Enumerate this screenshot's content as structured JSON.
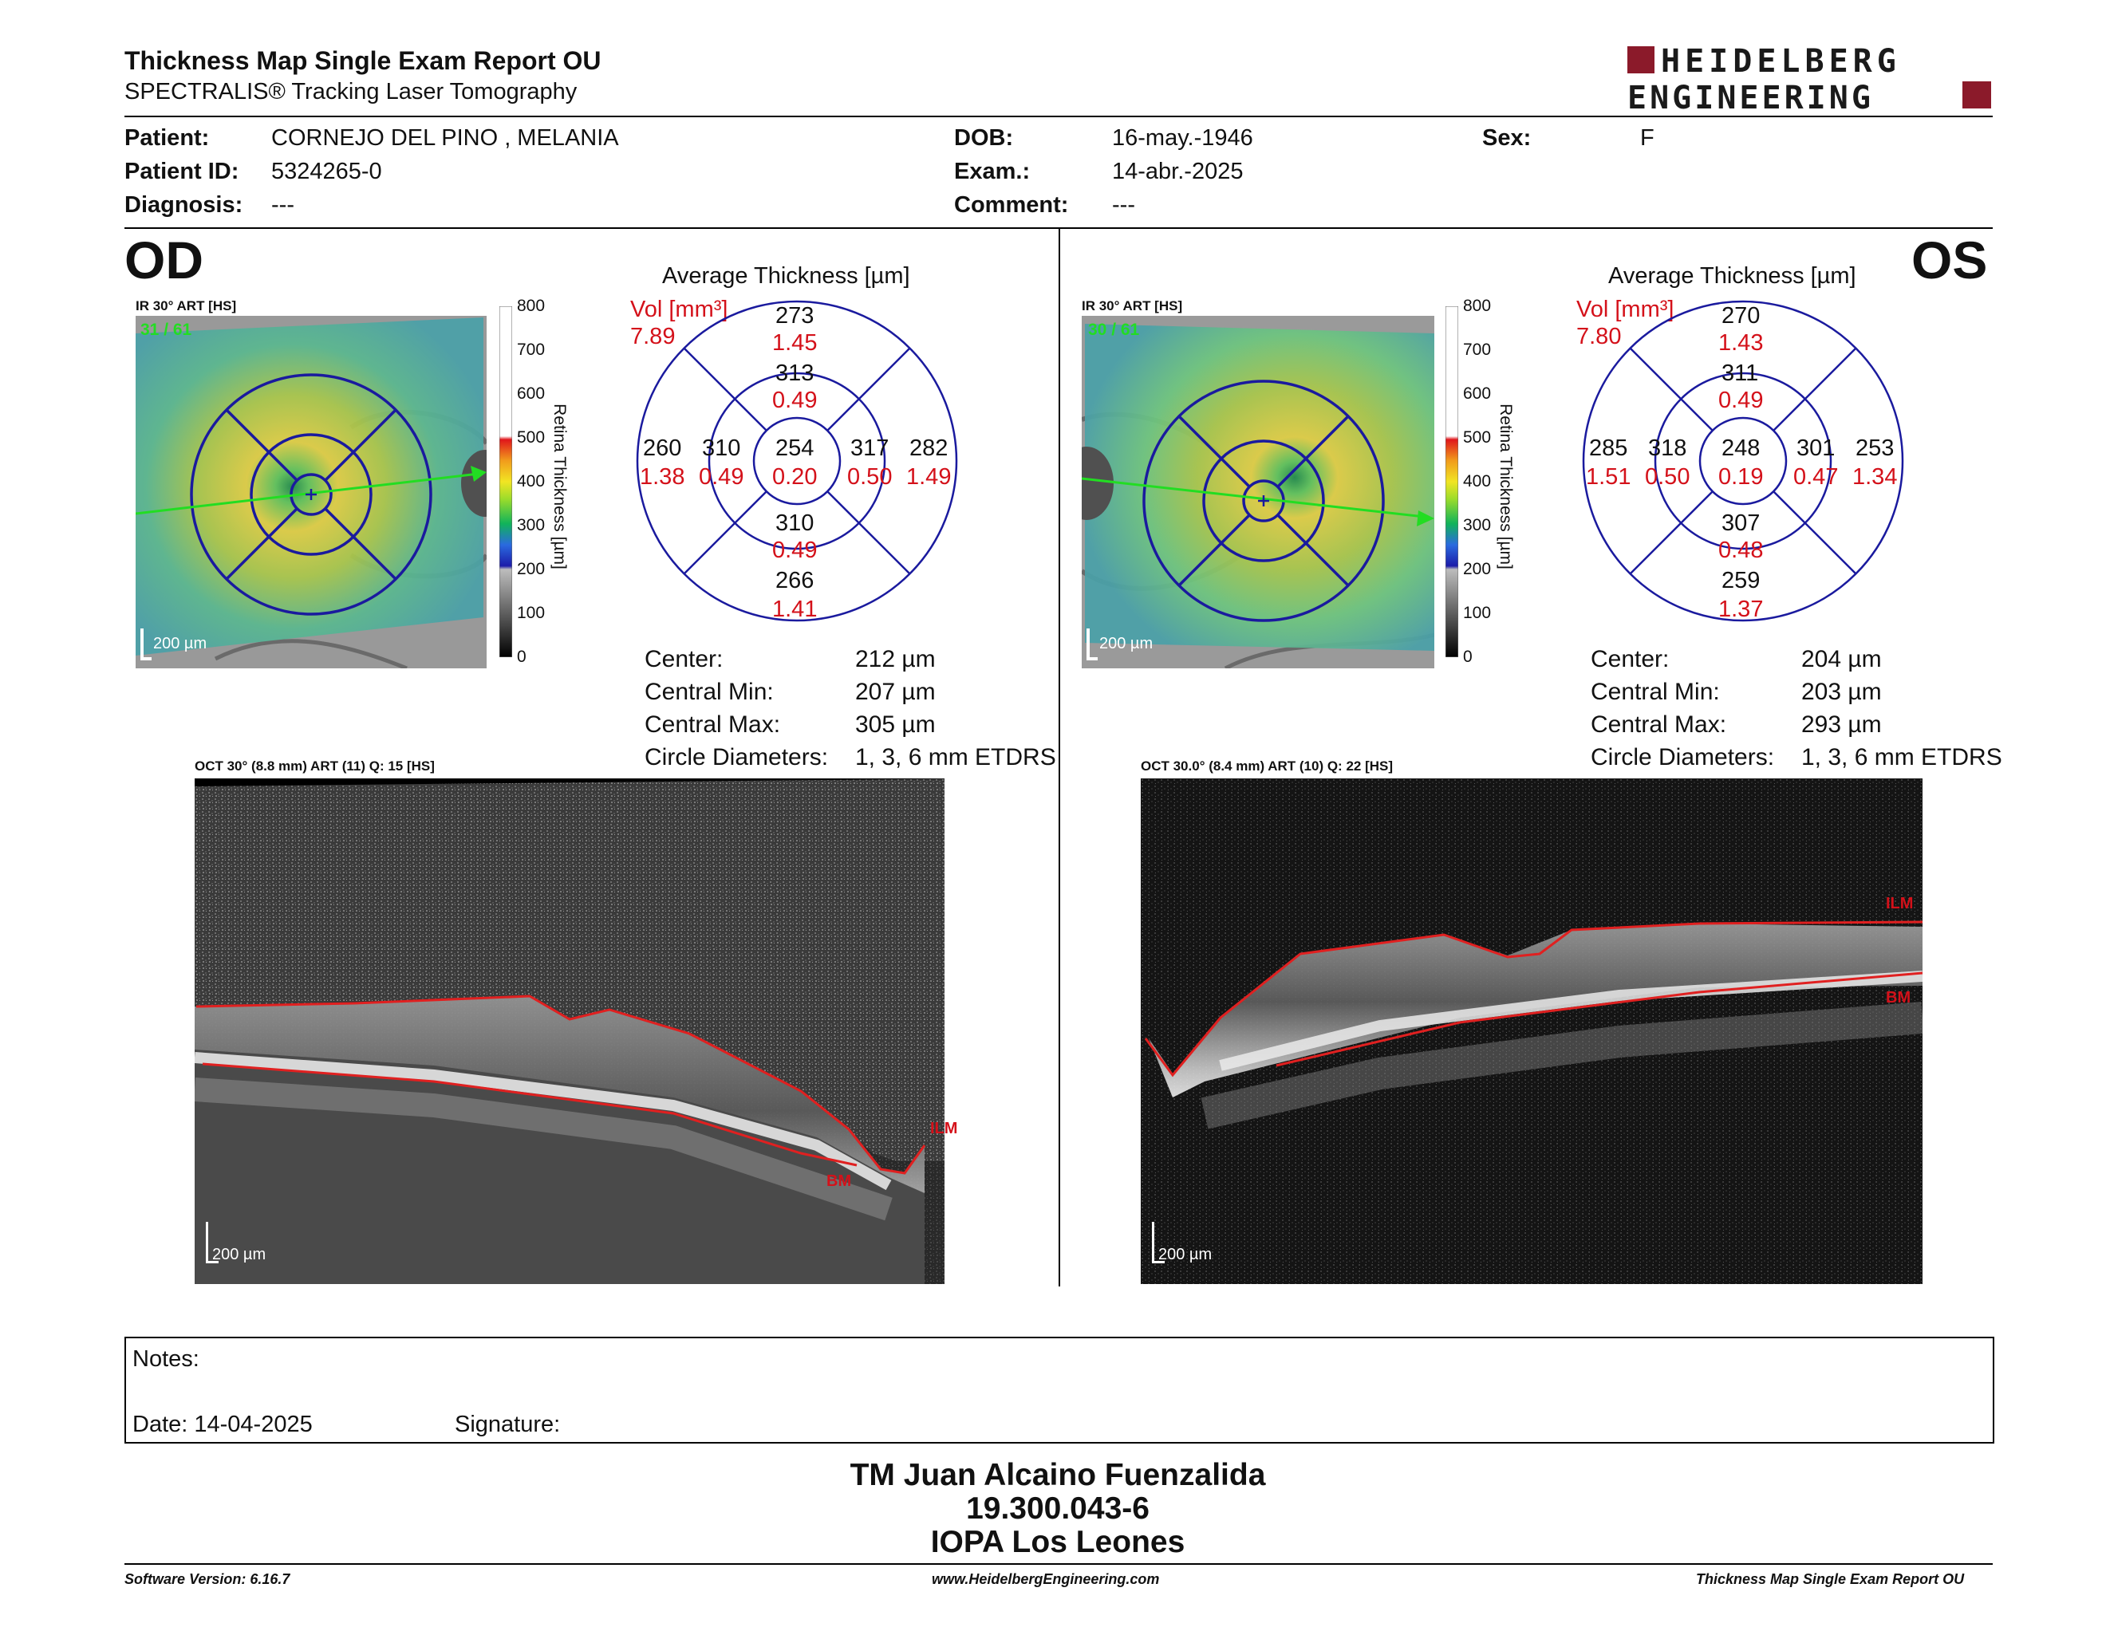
{
  "header": {
    "title": "Thickness Map Single Exam Report OU",
    "subtitle": "SPECTRALIS® Tracking Laser Tomography",
    "logo_line1": "HEIDELBERG",
    "logo_line2": "ENGINEERING",
    "brand_color": "#8b1a2a"
  },
  "patient": {
    "patient_label": "Patient:",
    "patient_value": "CORNEJO DEL PINO , MELANIA",
    "id_label": "Patient ID:",
    "id_value": "5324265-0",
    "diagnosis_label": "Diagnosis:",
    "diagnosis_value": "---",
    "dob_label": "DOB:",
    "dob_value": "16-may.-1946",
    "exam_label": "Exam.:",
    "exam_value": "14-abr.-2025",
    "comment_label": "Comment:",
    "comment_value": "---",
    "sex_label": "Sex:",
    "sex_value": "F"
  },
  "od": {
    "eye_label": "OD",
    "ir_caption": "IR 30° ART [HS]",
    "ir_counter": "31 / 61",
    "ir_scale": "200 µm",
    "scale_ticks": [
      "800",
      "700",
      "600",
      "500",
      "400",
      "300",
      "200",
      "100",
      "0"
    ],
    "scale_label": "Retina  Thickness [µm]",
    "avg_title": "Average Thickness [µm]",
    "vol_label": "Vol [mm³]",
    "vol_value": "7.89",
    "sectors": {
      "center": {
        "t": "254",
        "v": "0.20"
      },
      "inner_top": {
        "t": "313",
        "v": "0.49"
      },
      "inner_bottom": {
        "t": "310",
        "v": "0.49"
      },
      "inner_left": {
        "t": "310",
        "v": "0.49"
      },
      "inner_right": {
        "t": "317",
        "v": "0.50"
      },
      "outer_top": {
        "t": "273",
        "v": "1.45"
      },
      "outer_bottom": {
        "t": "266",
        "v": "1.41"
      },
      "outer_left": {
        "t": "260",
        "v": "1.38"
      },
      "outer_right": {
        "t": "282",
        "v": "1.49"
      }
    },
    "stats": [
      {
        "label": "Center:",
        "value": "212 µm"
      },
      {
        "label": "Central Min:",
        "value": "207 µm"
      },
      {
        "label": "Central Max:",
        "value": "305 µm"
      },
      {
        "label": "Circle Diameters:",
        "value": "1, 3, 6 mm ETDRS"
      }
    ],
    "oct_caption": "OCT 30° (8.8 mm) ART (11) Q: 15 [HS]",
    "oct_scale": "200 µm",
    "ilm": "ILM",
    "bm": "BM"
  },
  "os": {
    "eye_label": "OS",
    "ir_caption": "IR 30° ART [HS]",
    "ir_counter": "30 / 61",
    "ir_scale": "200 µm",
    "scale_ticks": [
      "800",
      "700",
      "600",
      "500",
      "400",
      "300",
      "200",
      "100",
      "0"
    ],
    "scale_label": "Retina  Thickness [µm]",
    "avg_title": "Average Thickness [µm]",
    "vol_label": "Vol [mm³]",
    "vol_value": "7.80",
    "sectors": {
      "center": {
        "t": "248",
        "v": "0.19"
      },
      "inner_top": {
        "t": "311",
        "v": "0.49"
      },
      "inner_bottom": {
        "t": "307",
        "v": "0.48"
      },
      "inner_left": {
        "t": "318",
        "v": "0.50"
      },
      "inner_right": {
        "t": "301",
        "v": "0.47"
      },
      "outer_top": {
        "t": "270",
        "v": "1.43"
      },
      "outer_bottom": {
        "t": "259",
        "v": "1.37"
      },
      "outer_left": {
        "t": "285",
        "v": "1.51"
      },
      "outer_right": {
        "t": "253",
        "v": "1.34"
      }
    },
    "stats": [
      {
        "label": "Center:",
        "value": "204 µm"
      },
      {
        "label": "Central Min:",
        "value": "203 µm"
      },
      {
        "label": "Central Max:",
        "value": "293 µm"
      },
      {
        "label": "Circle Diameters:",
        "value": "1, 3, 6 mm ETDRS"
      }
    ],
    "oct_caption": "OCT 30.0° (8.4 mm) ART (10) Q: 22 [HS]",
    "oct_scale": "200 µm",
    "ilm": "ILM",
    "bm": "BM"
  },
  "notes": {
    "notes_label": "Notes:",
    "date_label": "Date: 14-04-2025",
    "signature_label": "Signature:"
  },
  "signer": {
    "name": "TM Juan Alcaino Fuenzalida",
    "rut": "19.300.043-6",
    "org": "IOPA Los Leones"
  },
  "footer": {
    "software": "Software Version: 6.16.7",
    "website": "www.HeidelbergEngineering.com",
    "report": "Thickness Map Single Exam Report OU"
  }
}
